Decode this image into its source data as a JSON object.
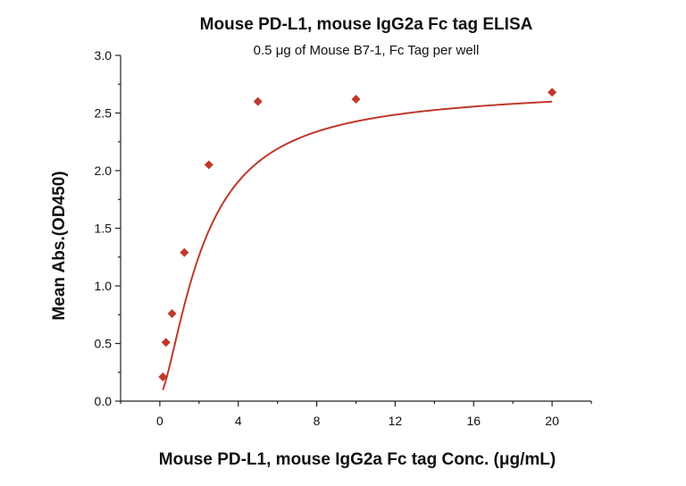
{
  "chart_data": {
    "type": "scatter",
    "title": "Mouse PD-L1, mouse IgG2a Fc tag ELISA",
    "subtitle": "0.5 μg of Mouse B7-1, Fc Tag per well",
    "xlabel": "Mouse PD-L1, mouse IgG2a Fc tag Conc. (μg/mL)",
    "ylabel": "Mean Abs.(OD450)",
    "xlim": [
      -2,
      22
    ],
    "ylim": [
      0,
      3.0
    ],
    "x_ticks": [
      "0",
      "4",
      "8",
      "12",
      "16",
      "20"
    ],
    "y_ticks": [
      "0.0",
      "0.5",
      "1.0",
      "1.5",
      "2.0",
      "2.5",
      "3.0"
    ],
    "grid": false,
    "marker": "diamond",
    "colors": {
      "series": "#c0392b"
    },
    "series": [
      {
        "x": [
          0.156,
          0.3125,
          0.625,
          1.25,
          2.5,
          5,
          10,
          20
        ],
        "y": [
          0.21,
          0.51,
          0.76,
          1.29,
          2.05,
          2.6,
          2.62,
          2.68
        ],
        "fit_curve": true
      }
    ]
  }
}
